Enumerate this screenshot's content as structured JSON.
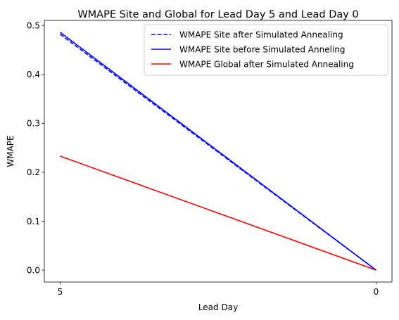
{
  "chart_data": {
    "type": "line",
    "title": "WMAPE Site and Global for Lead Day 5 and Lead Day 0",
    "xlabel": "Lead Day",
    "ylabel": "WMAPE",
    "categories": [
      "5",
      "0"
    ],
    "ylim": [
      -0.0243,
      0.5103
    ],
    "yticks": [
      0.0,
      0.1,
      0.2,
      0.3,
      0.4,
      0.5
    ],
    "yticklabels": [
      "0.0",
      "0.1",
      "0.2",
      "0.3",
      "0.4",
      "0.5"
    ],
    "grid": false,
    "legend_position": "upper right",
    "series": [
      {
        "name": "WMAPE Site after Simulated Annealing",
        "values": [
          0.482,
          0.0
        ],
        "color": "#0000ff",
        "linestyle": "dashed"
      },
      {
        "name": "WMAPE Site before Simulated Anneling",
        "values": [
          0.486,
          0.0
        ],
        "color": "#0000ff",
        "linestyle": "solid"
      },
      {
        "name": "WMAPE Global after Simulated Annealing",
        "values": [
          0.233,
          0.0
        ],
        "color": "#ff0000",
        "linestyle": "solid"
      }
    ]
  }
}
